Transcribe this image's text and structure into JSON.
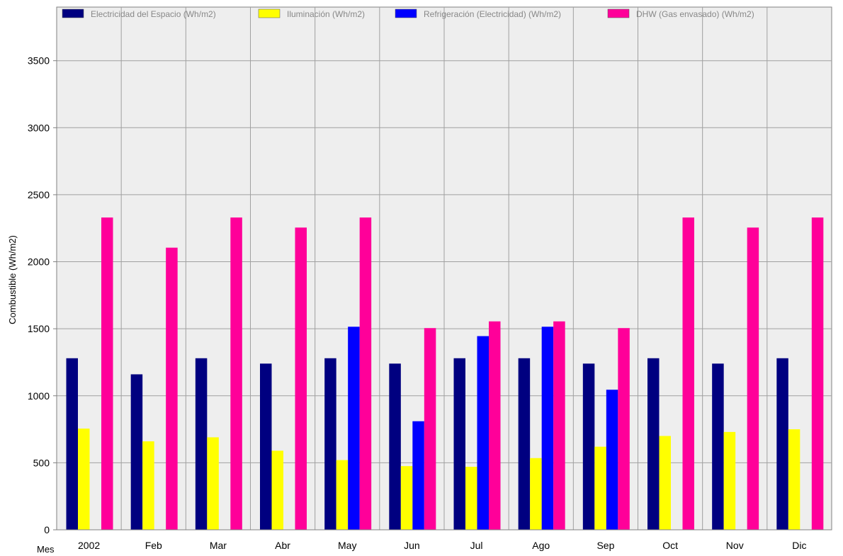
{
  "chart_data": {
    "type": "bar",
    "title": "",
    "xlabel": "Mes",
    "ylabel": "Combustible (Wh/m2)",
    "ylim": [
      0,
      3900
    ],
    "yticks": [
      0,
      500,
      1000,
      1500,
      2000,
      2500,
      3000,
      3500
    ],
    "grid": true,
    "legend_position": "top",
    "categories": [
      "2002",
      "Feb",
      "Mar",
      "Abr",
      "May",
      "Jun",
      "Jul",
      "Ago",
      "Sep",
      "Oct",
      "Nov",
      "Dic"
    ],
    "series": [
      {
        "name": "Electricidad del Espacio (Wh/m2)",
        "color": "#000080",
        "values": [
          1280,
          1160,
          1280,
          1240,
          1280,
          1240,
          1280,
          1280,
          1240,
          1280,
          1240,
          1280
        ]
      },
      {
        "name": "Iluminación (Wh/m2)",
        "color": "#ffff00",
        "values": [
          755,
          660,
          690,
          590,
          520,
          475,
          470,
          535,
          620,
          700,
          730,
          750
        ]
      },
      {
        "name": "Refrigeración (Electricidad) (Wh/m2)",
        "color": "#0000ff",
        "values": [
          0,
          0,
          0,
          0,
          1515,
          810,
          1445,
          1515,
          1045,
          0,
          0,
          0
        ]
      },
      {
        "name": "DHW (Gas envasado) (Wh/m2)",
        "color": "#ff0099",
        "values": [
          2330,
          2105,
          2330,
          2255,
          2330,
          1505,
          1555,
          1555,
          1505,
          2330,
          2255,
          2330
        ]
      }
    ]
  }
}
